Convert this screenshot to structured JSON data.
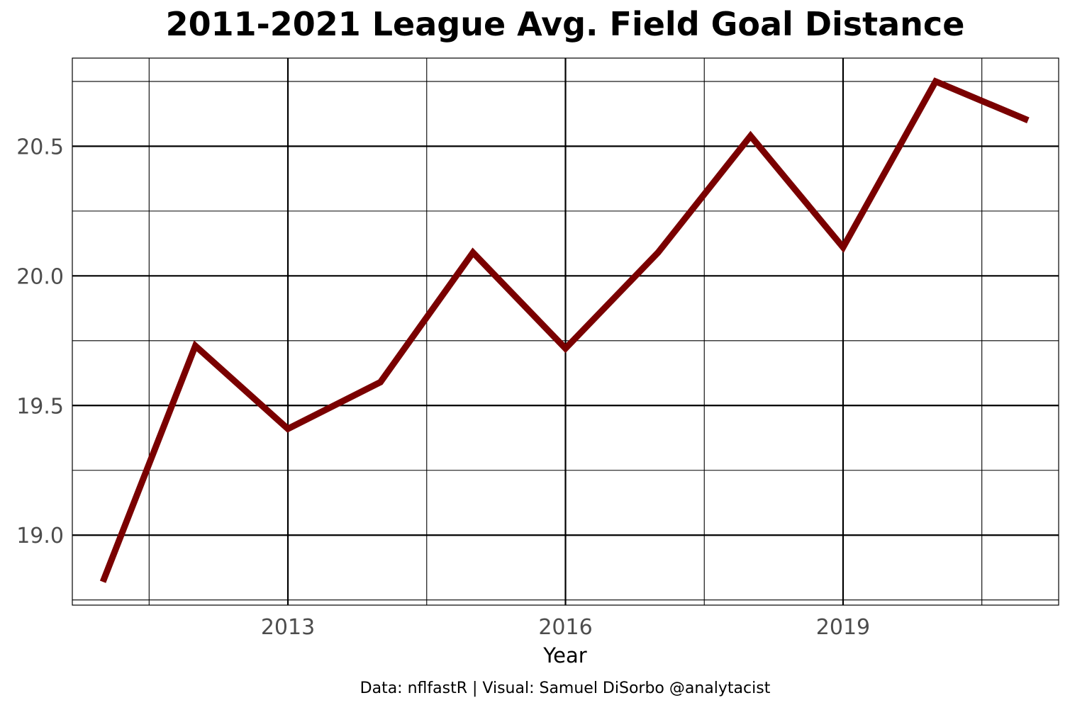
{
  "chart_data": {
    "type": "line",
    "title": "2011-2021 League Avg. Field Goal Distance",
    "xlabel": "Year",
    "ylabel": "",
    "caption": "Data: nflfastR | Visual: Samuel DiSorbo @analytacist",
    "x": [
      2011,
      2012,
      2013,
      2014,
      2015,
      2016,
      2017,
      2018,
      2019,
      2020,
      2021
    ],
    "series": [
      {
        "values": [
          18.82,
          19.73,
          19.41,
          19.59,
          20.09,
          19.72,
          20.09,
          20.54,
          20.11,
          20.75,
          20.6
        ],
        "color": "#7a0000"
      }
    ],
    "xlim": [
      2010.67,
      2021.33
    ],
    "ylim": [
      18.73,
      20.84
    ],
    "x_major_ticks": [
      2013,
      2016,
      2019
    ],
    "x_minor_ticks": [
      2011.5,
      2014.5,
      2017.5,
      2020.5
    ],
    "y_major_ticks": [
      19.0,
      19.5,
      20.0,
      20.5
    ],
    "y_minor_ticks": [
      18.75,
      19.25,
      19.75,
      20.25,
      20.75
    ],
    "x_tick_labels": [
      "2013",
      "2016",
      "2019"
    ],
    "y_tick_labels": [
      "19.0",
      "19.5",
      "20.0",
      "20.5"
    ],
    "grid": true,
    "legend": "none"
  }
}
